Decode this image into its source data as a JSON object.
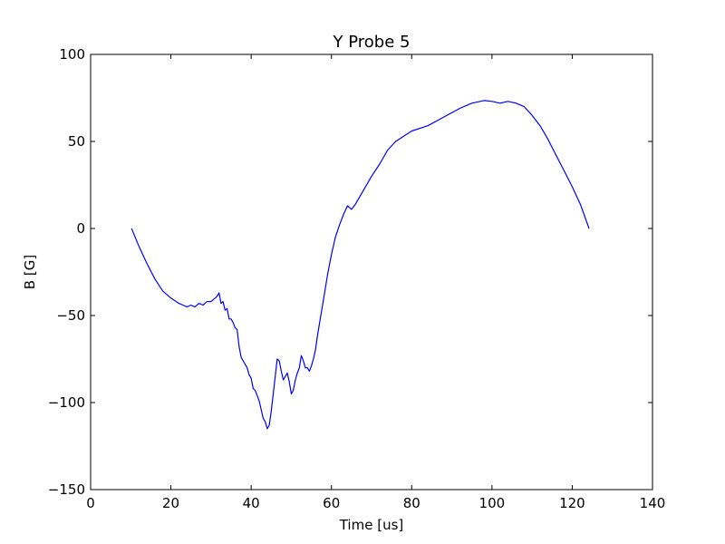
{
  "chart_data": {
    "type": "line",
    "title": "Y Probe 5",
    "xlabel": "Time [us]",
    "ylabel": "B [G]",
    "xlim": [
      0,
      140
    ],
    "ylim": [
      -150,
      100
    ],
    "xticks": [
      0,
      20,
      40,
      60,
      80,
      100,
      120,
      140
    ],
    "yticks": [
      -150,
      -100,
      -50,
      0,
      50,
      100
    ],
    "xtick_labels": [
      "0",
      "20",
      "40",
      "60",
      "80",
      "100",
      "120",
      "140"
    ],
    "ytick_labels": [
      "−150",
      "−100",
      "−50",
      "0",
      "50",
      "100"
    ],
    "grid": false,
    "series": [
      {
        "color": "#0000ff",
        "x": [
          10.2,
          12,
          14,
          16,
          18,
          20,
          22,
          23,
          24,
          25,
          26,
          27,
          28,
          29,
          30,
          31,
          31.5,
          32,
          32.5,
          33,
          33.5,
          34,
          34.5,
          35,
          35.5,
          36,
          36.5,
          37,
          37.5,
          38,
          38.5,
          39,
          39.5,
          40,
          40.5,
          41,
          41.5,
          42,
          42.5,
          43,
          43.5,
          44,
          44.5,
          45,
          45.5,
          46,
          46.5,
          47,
          47.5,
          48,
          48.5,
          49,
          49.5,
          50,
          50.5,
          51,
          51.5,
          52,
          52.5,
          53,
          53.5,
          54,
          54.5,
          55,
          55.5,
          56,
          56.5,
          57,
          58,
          59,
          60,
          61,
          62,
          63,
          64,
          65,
          66,
          67,
          68,
          69,
          70,
          72,
          74,
          76,
          78,
          80,
          84,
          88,
          92,
          95,
          98,
          100,
          102,
          104,
          106,
          108,
          110,
          112,
          114,
          116,
          118,
          120,
          122,
          124.2
        ],
        "y": [
          0,
          -10,
          -20,
          -29,
          -36,
          -40,
          -43,
          -44,
          -45,
          -44,
          -45,
          -43,
          -44,
          -42,
          -42,
          -40,
          -39,
          -37,
          -43,
          -42,
          -47,
          -46,
          -52,
          -52,
          -54,
          -57,
          -58,
          -68,
          -74,
          -76,
          -78,
          -80,
          -84,
          -86,
          -92,
          -93,
          -96,
          -99,
          -104,
          -109,
          -111,
          -115,
          -113,
          -105,
          -95,
          -85,
          -75,
          -76,
          -82,
          -87,
          -85,
          -83,
          -88,
          -95,
          -93,
          -87,
          -83,
          -80,
          -73,
          -76,
          -80,
          -80,
          -82,
          -79,
          -75,
          -70,
          -62,
          -55,
          -41,
          -27,
          -15,
          -5,
          2,
          8,
          13,
          11,
          14,
          18,
          22,
          26,
          30,
          37,
          45,
          50,
          53,
          56,
          59,
          64,
          69,
          72,
          73.5,
          73,
          72,
          73,
          72,
          70,
          65,
          59,
          51,
          42,
          33,
          24,
          14,
          0
        ]
      }
    ]
  }
}
